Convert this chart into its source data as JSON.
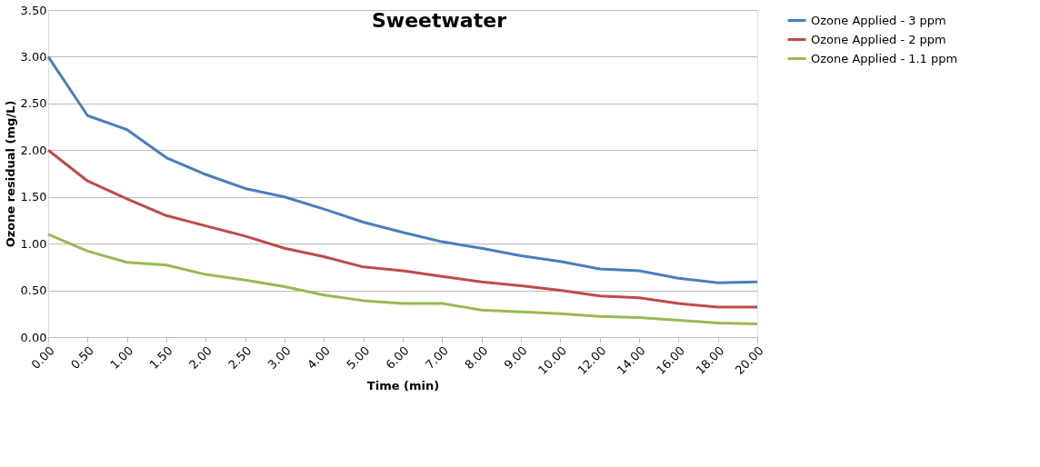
{
  "chart_data": {
    "type": "line",
    "title": "Sweetwater",
    "xlabel": "Time (min)",
    "ylabel": "Ozone residual (mg/L)",
    "categories": [
      "0.00",
      "0.50",
      "1.00",
      "1.50",
      "2.00",
      "2.50",
      "3.00",
      "4.00",
      "5.00",
      "6.00",
      "7.00",
      "8.00",
      "9.00",
      "10.00",
      "12.00",
      "14.00",
      "16.00",
      "18.00",
      "20.00"
    ],
    "series": [
      {
        "name": "Ozone Applied - 3 ppm",
        "color": "#4a7ebb",
        "values": [
          3.0,
          2.37,
          2.22,
          1.92,
          1.74,
          1.59,
          1.5,
          1.37,
          1.23,
          1.12,
          1.02,
          0.95,
          0.87,
          0.81,
          0.73,
          0.71,
          0.63,
          0.58,
          0.59
        ]
      },
      {
        "name": "Ozone Applied - 2 ppm",
        "color": "#be4b48",
        "values": [
          2.0,
          1.67,
          1.48,
          1.3,
          1.19,
          1.08,
          0.95,
          0.86,
          0.75,
          0.71,
          0.65,
          0.59,
          0.55,
          0.5,
          0.44,
          0.42,
          0.36,
          0.32,
          0.32
        ]
      },
      {
        "name": "Ozone Applied - 1.1 ppm",
        "color": "#98b954",
        "values": [
          1.1,
          0.92,
          0.8,
          0.77,
          0.67,
          0.61,
          0.54,
          0.45,
          0.39,
          0.36,
          0.36,
          0.29,
          0.27,
          0.25,
          0.22,
          0.21,
          0.18,
          0.15,
          0.14
        ]
      }
    ],
    "ylim": [
      0,
      3.5
    ],
    "yticks": [
      {
        "value": 0,
        "label": "0.00"
      },
      {
        "value": 0.5,
        "label": "0.50"
      },
      {
        "value": 1,
        "label": "1.00"
      },
      {
        "value": 1.5,
        "label": "1.50"
      },
      {
        "value": 2,
        "label": "2.00"
      },
      {
        "value": 2.5,
        "label": "2.50"
      },
      {
        "value": 3,
        "label": "3.00"
      },
      {
        "value": 3.5,
        "label": "3.50"
      }
    ],
    "grid": "y",
    "legend": "right",
    "marker": "none",
    "line_style": "solid"
  }
}
